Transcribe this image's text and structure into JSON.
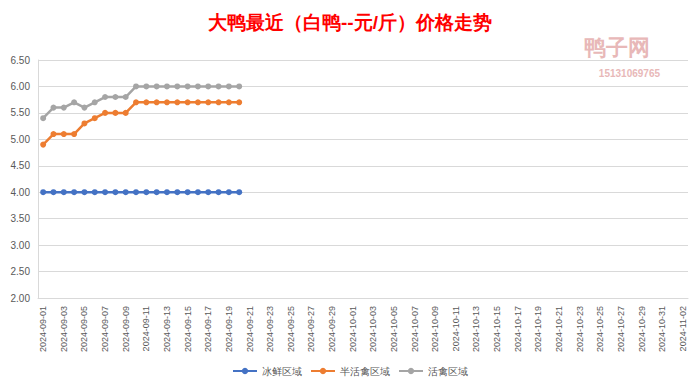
{
  "chart_data": {
    "type": "line",
    "title": "大鸭最近（白鸭--元/斤）价格走势",
    "annotations": [
      "鸭子网",
      "15131069765"
    ],
    "categories": [
      "2024-09-01",
      null,
      "2024-09-03",
      null,
      "2024-09-05",
      null,
      "2024-09-07",
      null,
      "2024-09-09",
      null,
      "2024-09-11",
      null,
      "2024-09-13",
      null,
      "2024-09-15",
      null,
      "2024-09-17",
      null,
      "2024-09-19",
      null,
      "2024-09-21",
      null,
      "2024-09-23",
      null,
      "2024-09-25",
      null,
      "2024-09-27",
      null,
      "2024-09-29",
      null,
      "2024-10-01",
      null,
      "2024-10-03",
      null,
      "2024-10-05",
      null,
      "2024-10-07",
      null,
      "2024-10-09",
      null,
      "2024-10-11",
      null,
      "2024-10-13",
      null,
      "2024-10-15",
      null,
      "2024-10-17",
      null,
      "2024-10-19",
      null,
      "2024-10-21",
      null,
      "2024-10-23",
      null,
      "2024-10-25",
      null,
      "2024-10-27",
      null,
      "2024-10-29",
      null,
      "2024-10-31",
      null,
      "2024-11-02"
    ],
    "series": [
      {
        "name": "冰鲜区域",
        "color": "#4472c4",
        "marker": "circle",
        "line_style": "solid",
        "values": [
          4.0,
          4.0,
          4.0,
          4.0,
          4.0,
          4.0,
          4.0,
          4.0,
          4.0,
          4.0,
          4.0,
          4.0,
          4.0,
          4.0,
          4.0,
          4.0,
          4.0,
          4.0,
          4.0,
          4.0,
          null,
          null,
          null,
          null,
          null,
          null,
          null,
          null,
          null,
          null,
          null,
          null,
          null,
          null,
          null,
          null,
          null,
          null,
          null,
          null,
          null,
          null,
          null,
          null,
          null,
          null,
          null,
          null,
          null,
          null,
          null,
          null,
          null,
          null,
          null,
          null,
          null,
          null,
          null,
          null,
          null,
          null,
          null
        ]
      },
      {
        "name": "半活禽区域",
        "color": "#ed7d31",
        "marker": "circle",
        "line_style": "solid",
        "values": [
          4.9,
          5.1,
          5.1,
          5.1,
          5.3,
          5.4,
          5.5,
          5.5,
          5.5,
          5.7,
          5.7,
          5.7,
          5.7,
          5.7,
          5.7,
          5.7,
          5.7,
          5.7,
          5.7,
          5.7,
          null,
          null,
          null,
          null,
          null,
          null,
          null,
          null,
          null,
          null,
          null,
          null,
          null,
          null,
          null,
          null,
          null,
          null,
          null,
          null,
          null,
          null,
          null,
          null,
          null,
          null,
          null,
          null,
          null,
          null,
          null,
          null,
          null,
          null,
          null,
          null,
          null,
          null,
          null,
          null,
          null,
          null,
          null
        ]
      },
      {
        "name": "活禽区域",
        "color": "#a5a5a5",
        "marker": "circle",
        "line_style": "solid",
        "values": [
          5.4,
          5.6,
          5.6,
          5.7,
          5.6,
          5.7,
          5.8,
          5.8,
          5.8,
          6.0,
          6.0,
          6.0,
          6.0,
          6.0,
          6.0,
          6.0,
          6.0,
          6.0,
          6.0,
          6.0,
          null,
          null,
          null,
          null,
          null,
          null,
          null,
          null,
          null,
          null,
          null,
          null,
          null,
          null,
          null,
          null,
          null,
          null,
          null,
          null,
          null,
          null,
          null,
          null,
          null,
          null,
          null,
          null,
          null,
          null,
          null,
          null,
          null,
          null,
          null,
          null,
          null,
          null,
          null,
          null,
          null,
          null,
          null
        ]
      }
    ],
    "ylim": [
      2.0,
      6.5
    ],
    "yticks": [
      {
        "value": 2.0,
        "label": "2.00"
      },
      {
        "value": 2.5,
        "label": "2.50"
      },
      {
        "value": 3.0,
        "label": "3.00"
      },
      {
        "value": 3.5,
        "label": "3.50"
      },
      {
        "value": 4.0,
        "label": "4.00"
      },
      {
        "value": 4.5,
        "label": "4.50"
      },
      {
        "value": 5.0,
        "label": "5.00"
      },
      {
        "value": 5.5,
        "label": "5.50"
      },
      {
        "value": 6.0,
        "label": "6.00"
      },
      {
        "value": 6.5,
        "label": "6.50"
      }
    ],
    "grid": true,
    "legend": "bottom"
  }
}
